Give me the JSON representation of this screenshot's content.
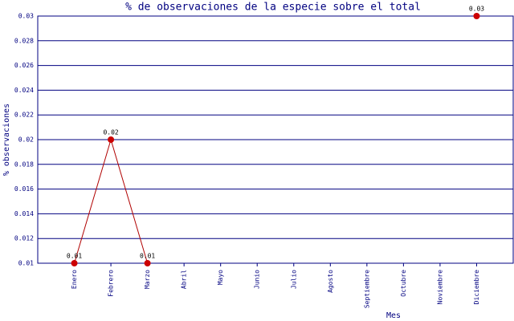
{
  "chart_data": {
    "type": "line",
    "title": "% de observaciones de la especie sobre el total",
    "x_label": "Mes",
    "y_label": "% observaciones",
    "categories": [
      "Enero",
      "Febrero",
      "Marzo",
      "Abril",
      "Mayo",
      "Junio",
      "Julio",
      "Agosto",
      "Septiembre",
      "Octubre",
      "Noviembre",
      "Diciembre"
    ],
    "values": [
      0.01,
      0.02,
      0.01,
      null,
      null,
      null,
      null,
      null,
      null,
      null,
      null,
      0.03
    ],
    "line_color": "#b00000",
    "marker_color": "#cc0000",
    "ylim": [
      0.01,
      0.03
    ],
    "yticks": [
      0.01,
      0.012,
      0.014,
      0.016,
      0.018,
      0.02,
      0.022,
      0.024,
      0.026,
      0.028,
      0.03
    ],
    "grid": true
  }
}
